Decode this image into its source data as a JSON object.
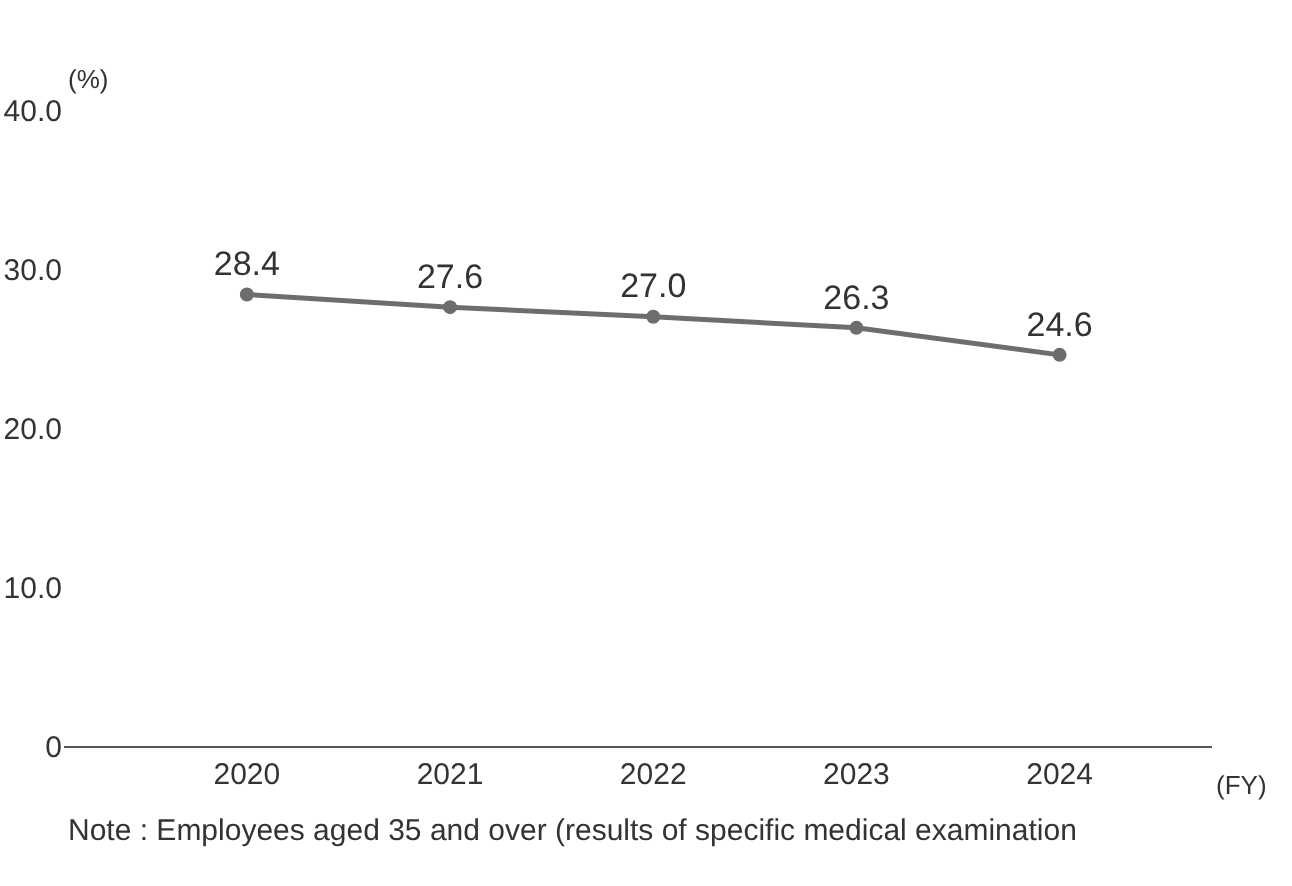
{
  "chart_data": {
    "type": "line",
    "categories": [
      "2020",
      "2021",
      "2022",
      "2023",
      "2024"
    ],
    "series": [
      {
        "color": "#6d6d6d",
        "values": [
          28.4,
          27.6,
          27.0,
          26.3,
          24.6
        ],
        "value_labels": [
          "28.4",
          "27.6",
          "27.0",
          "26.3",
          "24.6"
        ]
      }
    ],
    "ylabel": "(%)",
    "xlabel": "(FY)",
    "ylim": [
      0,
      40
    ],
    "yticks": [
      0,
      {
        "value": 10,
        "label": "10.0"
      },
      {
        "value": 20,
        "label": "20.0"
      },
      {
        "value": 30,
        "label": "30.0"
      },
      {
        "value": 40,
        "label": "40.0"
      }
    ],
    "marker": "circle",
    "line_style": "solid",
    "annotations": [
      "Note : Employees aged 35 and over (results of specific medical examination"
    ]
  }
}
